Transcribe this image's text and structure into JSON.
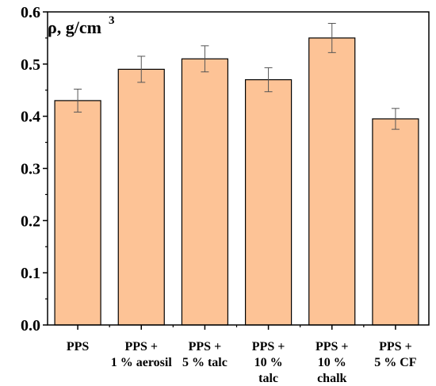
{
  "chart_data": {
    "type": "bar",
    "ylabel_base": "ρ, g/cm",
    "ylabel_sup": "3",
    "categories": [
      [
        "PPS"
      ],
      [
        "PPS +",
        "1 % aerosil"
      ],
      [
        "PPS +",
        "5 % talc"
      ],
      [
        "PPS +",
        "10 %",
        "talc"
      ],
      [
        "PPS +",
        "10 %",
        "chalk"
      ],
      [
        "PPS +",
        "5 % CF"
      ]
    ],
    "values": [
      0.43,
      0.49,
      0.51,
      0.47,
      0.55,
      0.395
    ],
    "errors": [
      0.022,
      0.025,
      0.025,
      0.023,
      0.028,
      0.02
    ],
    "ylim": [
      0,
      0.6
    ],
    "yticks": [
      "0.0",
      "0.1",
      "0.2",
      "0.3",
      "0.4",
      "0.5",
      "0.6"
    ],
    "bar_color": "#FDC396",
    "grid": false
  }
}
